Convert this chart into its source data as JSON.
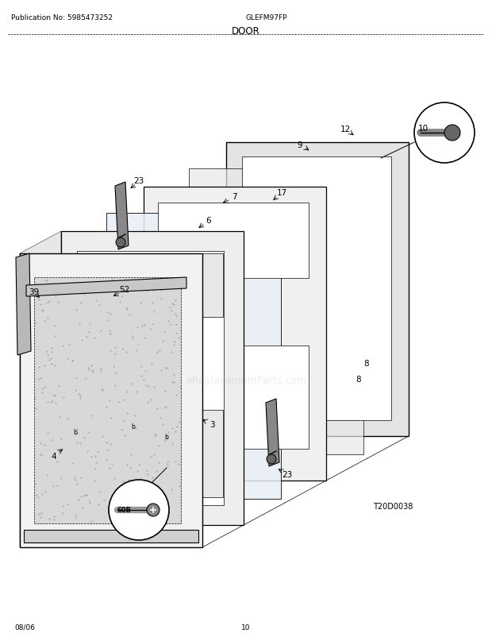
{
  "title": "DOOR",
  "pub_no": "Publication No: 5985473252",
  "model": "GLEFM97FP",
  "date": "08/06",
  "page": "10",
  "diagram_id": "T20D0038",
  "bg_color": "#ffffff",
  "lc": "#000000",
  "watermark": "eReplacementParts.com"
}
